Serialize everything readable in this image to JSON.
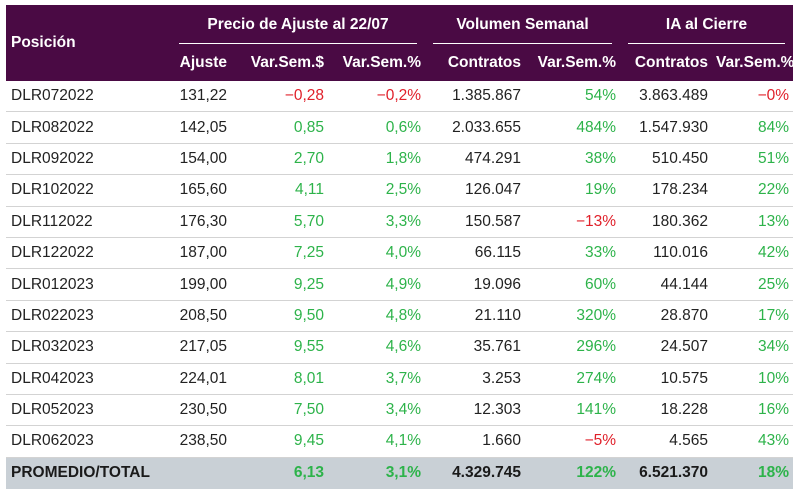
{
  "headers": {
    "position": "Posición",
    "group_price": "Precio de Ajuste al 22/07",
    "group_volume": "Volumen Semanal",
    "group_oi": "IA al Cierre",
    "ajuste": "Ajuste",
    "var_sem_dollar": "Var.Sem.$",
    "var_sem_pct": "Var.Sem.%",
    "contratos": "Contratos",
    "vol_var_pct": "Var.Sem.%",
    "oi_contratos": "Contratos",
    "oi_var_pct": "Var.Sem.%"
  },
  "rows": [
    {
      "name": "DLR072022",
      "ajuste": "131,22",
      "var_usd": "−0,28",
      "var_pct": "−0,2%",
      "vol": "1.385.867",
      "vol_var": "54%",
      "oi": "3.863.489",
      "oi_var": "−0%"
    },
    {
      "name": "DLR082022",
      "ajuste": "142,05",
      "var_usd": "0,85",
      "var_pct": "0,6%",
      "vol": "2.033.655",
      "vol_var": "484%",
      "oi": "1.547.930",
      "oi_var": "84%"
    },
    {
      "name": "DLR092022",
      "ajuste": "154,00",
      "var_usd": "2,70",
      "var_pct": "1,8%",
      "vol": "474.291",
      "vol_var": "38%",
      "oi": "510.450",
      "oi_var": "51%"
    },
    {
      "name": "DLR102022",
      "ajuste": "165,60",
      "var_usd": "4,11",
      "var_pct": "2,5%",
      "vol": "126.047",
      "vol_var": "19%",
      "oi": "178.234",
      "oi_var": "22%"
    },
    {
      "name": "DLR112022",
      "ajuste": "176,30",
      "var_usd": "5,70",
      "var_pct": "3,3%",
      "vol": "150.587",
      "vol_var": "−13%",
      "oi": "180.362",
      "oi_var": "13%"
    },
    {
      "name": "DLR122022",
      "ajuste": "187,00",
      "var_usd": "7,25",
      "var_pct": "4,0%",
      "vol": "66.115",
      "vol_var": "33%",
      "oi": "110.016",
      "oi_var": "42%"
    },
    {
      "name": "DLR012023",
      "ajuste": "199,00",
      "var_usd": "9,25",
      "var_pct": "4,9%",
      "vol": "19.096",
      "vol_var": "60%",
      "oi": "44.144",
      "oi_var": "25%"
    },
    {
      "name": "DLR022023",
      "ajuste": "208,50",
      "var_usd": "9,50",
      "var_pct": "4,8%",
      "vol": "21.110",
      "vol_var": "320%",
      "oi": "28.870",
      "oi_var": "17%"
    },
    {
      "name": "DLR032023",
      "ajuste": "217,05",
      "var_usd": "9,55",
      "var_pct": "4,6%",
      "vol": "35.761",
      "vol_var": "296%",
      "oi": "24.507",
      "oi_var": "34%"
    },
    {
      "name": "DLR042023",
      "ajuste": "224,01",
      "var_usd": "8,01",
      "var_pct": "3,7%",
      "vol": "3.253",
      "vol_var": "274%",
      "oi": "10.575",
      "oi_var": "10%"
    },
    {
      "name": "DLR052023",
      "ajuste": "230,50",
      "var_usd": "7,50",
      "var_pct": "3,4%",
      "vol": "12.303",
      "vol_var": "141%",
      "oi": "18.228",
      "oi_var": "16%"
    },
    {
      "name": "DLR062023",
      "ajuste": "238,50",
      "var_usd": "9,45",
      "var_pct": "4,1%",
      "vol": "1.660",
      "vol_var": "−5%",
      "oi": "4.565",
      "oi_var": "43%"
    }
  ],
  "total": {
    "name": "PROMEDIO/TOTAL",
    "ajuste": "",
    "var_usd": "6,13",
    "var_pct": "3,1%",
    "vol": "4.329.745",
    "vol_var": "122%",
    "oi": "6.521.370",
    "oi_var": "18%"
  },
  "colors": {
    "header_bg": "#4a0a44",
    "positive": "#2db34a",
    "negative": "#e0202a",
    "total_bg": "#c9d0d6"
  }
}
